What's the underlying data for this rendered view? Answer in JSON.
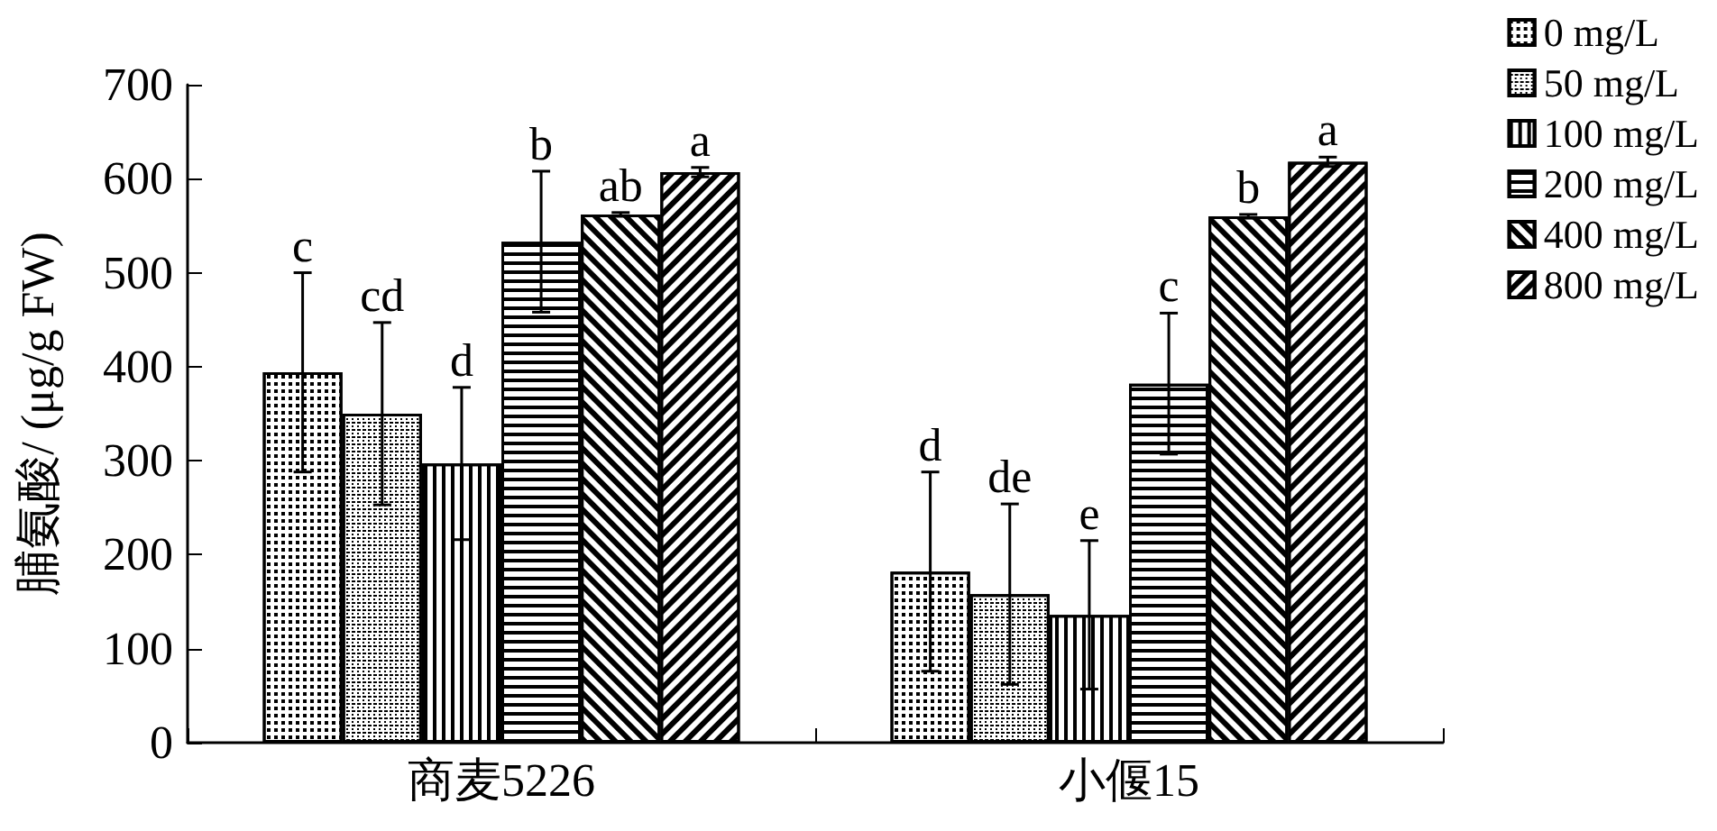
{
  "chart_data": {
    "type": "bar",
    "ylabel": "脯氨酸/ (μg/g FW)",
    "categories": [
      "商麦5226",
      "小偃15"
    ],
    "series": [
      {
        "name": "0 mg/L",
        "color": "#ffffff",
        "values": [
          394,
          182
        ],
        "errors": [
          106,
          106
        ],
        "value_labels": [
          "c",
          "d"
        ]
      },
      {
        "name": "50 mg/L",
        "color": "#ffffff",
        "values": [
          350,
          158
        ],
        "errors": [
          97,
          96
        ],
        "value_labels": [
          "cd",
          "de"
        ]
      },
      {
        "name": "100 mg/L",
        "color": "#ffffff",
        "values": [
          297,
          136
        ],
        "errors": [
          81,
          79
        ],
        "value_labels": [
          "d",
          "e"
        ]
      },
      {
        "name": "200 mg/L",
        "color": "#ffffff",
        "values": [
          533,
          382
        ],
        "errors": [
          75,
          75
        ],
        "value_labels": [
          "b",
          "c"
        ]
      },
      {
        "name": "400 mg/L",
        "color": "#ffffff",
        "values": [
          562,
          560
        ],
        "errors": [
          2,
          2
        ],
        "value_labels": [
          "ab",
          "b"
        ]
      },
      {
        "name": "800 mg/L",
        "color": "#ffffff",
        "values": [
          607,
          618
        ],
        "errors": [
          5,
          5
        ],
        "value_labels": [
          "a",
          "a"
        ]
      }
    ],
    "ylim": [
      0,
      700
    ],
    "yticks": [
      0,
      100,
      200,
      300,
      400,
      500,
      600,
      700
    ],
    "grid": false,
    "legend": "top right"
  }
}
